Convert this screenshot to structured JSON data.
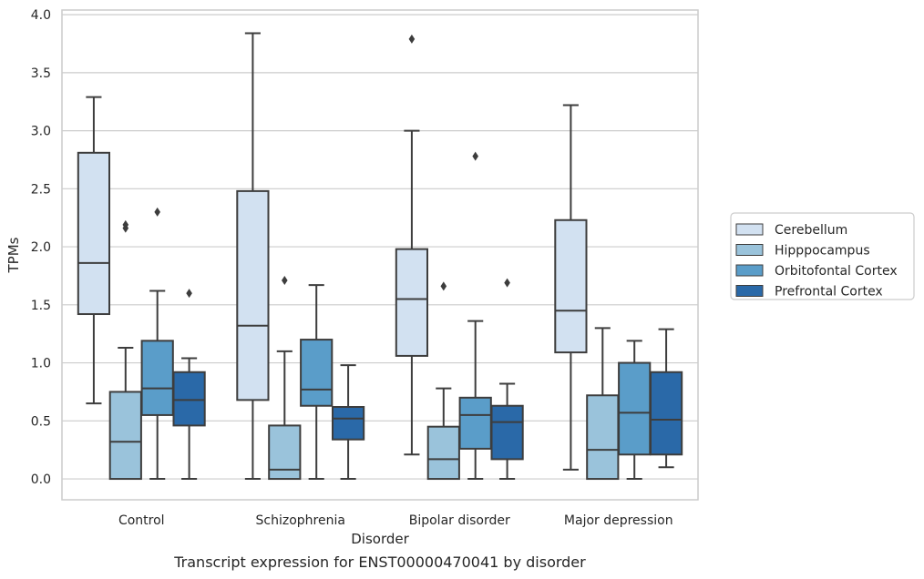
{
  "chart_data": {
    "type": "box",
    "xlabel": "Disorder",
    "ylabel": "TPMs",
    "caption": "Transcript expression for ENST00000470041 by disorder",
    "ylim": [
      -0.18,
      4.04
    ],
    "yticks": [
      "0.0",
      "0.5",
      "1.0",
      "1.5",
      "2.0",
      "2.5",
      "3.0",
      "3.5",
      "4.0"
    ],
    "grid": "horizontal",
    "legend_position": "right",
    "categories": [
      "Control",
      "Schizophrenia",
      "Bipolar disorder",
      "Major depression"
    ],
    "series": [
      {
        "name": "Cerebellum",
        "color": "#d2e1f1",
        "boxes": [
          {
            "whislo": 0.65,
            "q1": 1.42,
            "median": 1.86,
            "q3": 2.81,
            "whishi": 3.29,
            "fliers": []
          },
          {
            "whislo": 0.0,
            "q1": 0.68,
            "median": 1.32,
            "q3": 2.48,
            "whishi": 3.84,
            "fliers": []
          },
          {
            "whislo": 0.21,
            "q1": 1.06,
            "median": 1.55,
            "q3": 1.98,
            "whishi": 3.0,
            "fliers": [
              3.79
            ]
          },
          {
            "whislo": 0.08,
            "q1": 1.09,
            "median": 1.45,
            "q3": 2.23,
            "whishi": 3.22,
            "fliers": []
          }
        ]
      },
      {
        "name": "Hipppocampus",
        "color": "#9ac3db",
        "boxes": [
          {
            "whislo": 0.0,
            "q1": 0.0,
            "median": 0.32,
            "q3": 0.75,
            "whishi": 1.13,
            "fliers": [
              2.16,
              2.19
            ]
          },
          {
            "whislo": 0.0,
            "q1": 0.0,
            "median": 0.08,
            "q3": 0.46,
            "whishi": 1.1,
            "fliers": [
              1.71
            ]
          },
          {
            "whislo": 0.0,
            "q1": 0.0,
            "median": 0.17,
            "q3": 0.45,
            "whishi": 0.78,
            "fliers": [
              1.66
            ]
          },
          {
            "whislo": 0.0,
            "q1": 0.0,
            "median": 0.25,
            "q3": 0.72,
            "whishi": 1.3,
            "fliers": []
          }
        ]
      },
      {
        "name": "Orbitofontal Cortex",
        "color": "#5a9dc9",
        "boxes": [
          {
            "whislo": 0.0,
            "q1": 0.55,
            "median": 0.78,
            "q3": 1.19,
            "whishi": 1.62,
            "fliers": [
              2.3
            ]
          },
          {
            "whislo": 0.0,
            "q1": 0.63,
            "median": 0.77,
            "q3": 1.2,
            "whishi": 1.67,
            "fliers": []
          },
          {
            "whislo": 0.0,
            "q1": 0.26,
            "median": 0.55,
            "q3": 0.7,
            "whishi": 1.36,
            "fliers": [
              2.78
            ]
          },
          {
            "whislo": 0.0,
            "q1": 0.21,
            "median": 0.57,
            "q3": 1.0,
            "whishi": 1.19,
            "fliers": []
          }
        ]
      },
      {
        "name": "Prefrontal Cortex",
        "color": "#2a69a8",
        "boxes": [
          {
            "whislo": 0.0,
            "q1": 0.46,
            "median": 0.68,
            "q3": 0.92,
            "whishi": 1.04,
            "fliers": [
              1.6
            ]
          },
          {
            "whislo": 0.0,
            "q1": 0.34,
            "median": 0.52,
            "q3": 0.62,
            "whishi": 0.98,
            "fliers": []
          },
          {
            "whislo": 0.0,
            "q1": 0.17,
            "median": 0.49,
            "q3": 0.63,
            "whishi": 0.82,
            "fliers": [
              1.69
            ]
          },
          {
            "whislo": 0.1,
            "q1": 0.21,
            "median": 0.51,
            "q3": 0.92,
            "whishi": 1.29,
            "fliers": []
          }
        ]
      }
    ]
  }
}
